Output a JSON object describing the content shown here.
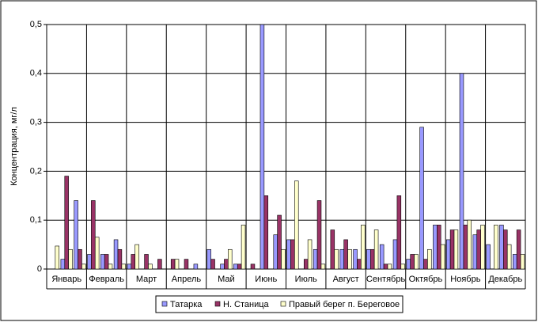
{
  "chart_data": {
    "type": "bar",
    "y_label": "Концентрация, мг/л",
    "categories": [
      "Январь",
      "Февраль",
      "Март",
      "Апрель",
      "Май",
      "Июнь",
      "Июль",
      "Август",
      "Сентябрь",
      "Октябрь",
      "Ноябрь",
      "Декабрь"
    ],
    "series": [
      {
        "name": "Татарка",
        "color": "#9999ff",
        "values": [
          [
            null,
            0.02,
            0.14
          ],
          [
            0.03,
            0.03,
            0.06
          ],
          [
            0.01,
            null,
            null
          ],
          [
            null,
            null,
            0.01
          ],
          [
            0.04,
            0.01,
            0.01
          ],
          [
            null,
            0.5,
            0.07
          ],
          [
            0.06,
            null,
            0.04
          ],
          [
            null,
            0.04,
            0.04
          ],
          [
            0.04,
            0.05,
            0.06
          ],
          [
            0.02,
            0.29,
            0.09
          ],
          [
            0.06,
            0.4,
            0.07
          ],
          [
            0.05,
            0.09,
            0.03
          ]
        ]
      },
      {
        "name": "Н. Станица",
        "color": "#993366",
        "values": [
          [
            null,
            0.19,
            0.04
          ],
          [
            0.14,
            0.03,
            0.04
          ],
          [
            0.03,
            0.03,
            0.02
          ],
          [
            0.02,
            0.02,
            null
          ],
          [
            0.02,
            0.02,
            0.01
          ],
          [
            0.01,
            0.15,
            0.11
          ],
          [
            0.06,
            0.02,
            0.14
          ],
          [
            0.08,
            0.06,
            0.02
          ],
          [
            0.04,
            0.01,
            0.15
          ],
          [
            0.03,
            0.02,
            0.09
          ],
          [
            0.08,
            0.09,
            0.08
          ],
          [
            null,
            0.08,
            0.08
          ]
        ]
      },
      {
        "name": "Правый берег п. Береговое",
        "color": "#ffffcc",
        "values": [
          [
            0.047,
            0.04,
            0.01
          ],
          [
            0.065,
            0.01,
            0.01
          ],
          [
            0.05,
            0.01,
            null
          ],
          [
            0.02,
            null,
            null
          ],
          [
            null,
            0.04,
            0.09
          ],
          [
            null,
            null,
            0.04
          ],
          [
            0.18,
            0.06,
            0.01
          ],
          [
            0.04,
            0.04,
            0.09
          ],
          [
            0.08,
            0.01,
            0.01
          ],
          [
            0.03,
            0.04,
            0.05
          ],
          [
            0.08,
            0.1,
            0.09
          ],
          [
            0.09,
            0.05,
            0.03
          ]
        ]
      }
    ],
    "ylim": [
      0,
      0.5
    ],
    "yticks": [
      0,
      {
        "value": 0.1,
        "label": "0,1"
      },
      {
        "value": 0.2,
        "label": "0,2"
      },
      {
        "value": 0.3,
        "label": "0,3"
      },
      {
        "value": 0.4,
        "label": "0,4"
      },
      {
        "value": 0.5,
        "label": "0,5"
      }
    ],
    "grid": true
  }
}
